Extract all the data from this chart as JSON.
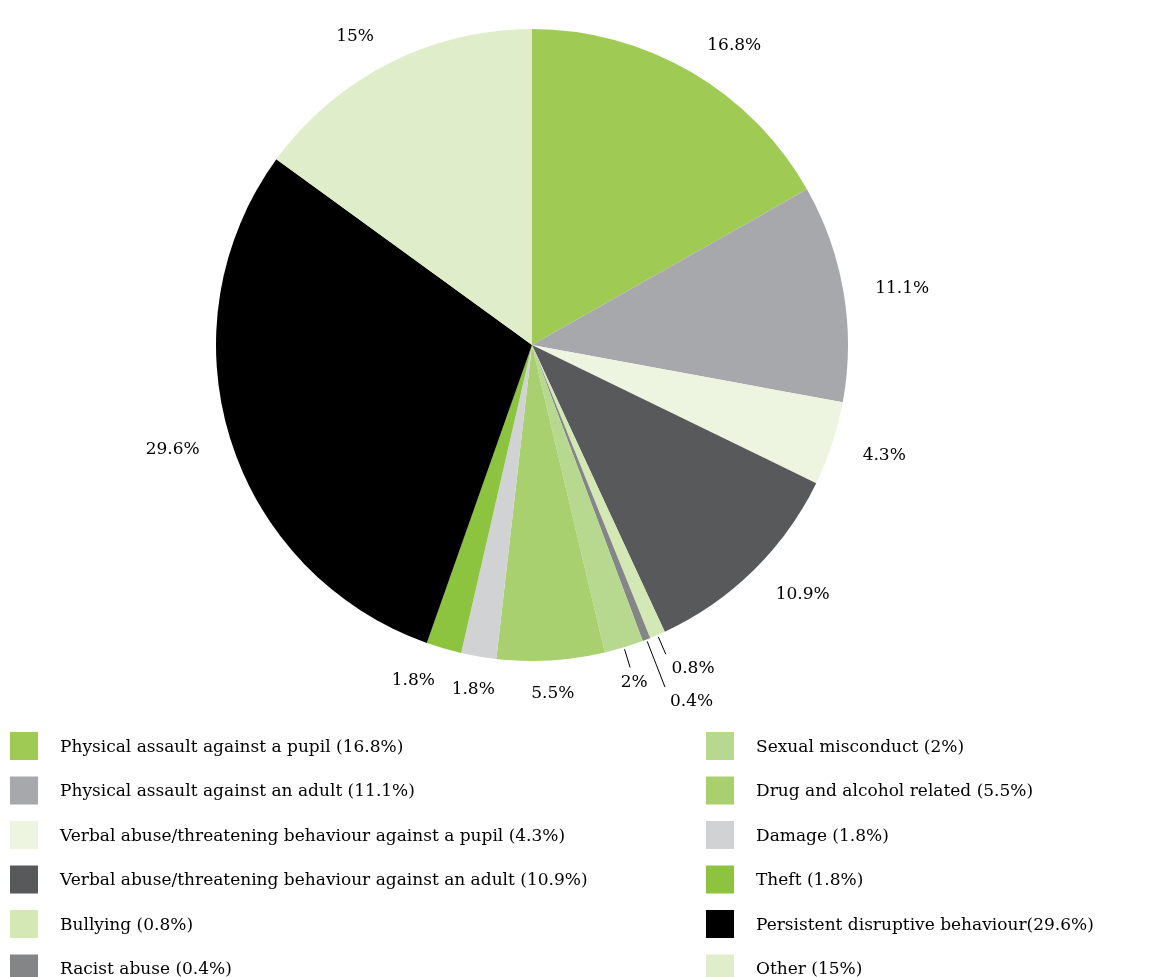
{
  "chart_data": {
    "type": "pie",
    "categories": [
      "Physical assault against a pupil (16.8%)",
      "Physical assault against an adult (11.1%)",
      "Verbal abuse/threatening behaviour against a pupil (4.3%)",
      "Verbal abuse/threatening behaviour against an adult (10.9%)",
      "Bullying (0.8%)",
      "Racist abuse (0.4%)",
      "Sexual misconduct (2%)",
      "Drug and alcohol related (5.5%)",
      "Damage (1.8%)",
      "Theft (1.8%)",
      "Persistent disruptive behaviour(29.6%)",
      "Other (15%)"
    ],
    "values": [
      16.8,
      11.1,
      4.3,
      10.9,
      0.8,
      0.4,
      2,
      5.5,
      1.8,
      1.8,
      29.6,
      15
    ],
    "value_labels": [
      "16.8%",
      "11.1%",
      "4.3%",
      "10.9%",
      "0.8%",
      "0.4%",
      "2%",
      "5.5%",
      "1.8%",
      "1.8%",
      "29.6%",
      "15%"
    ],
    "colors": [
      "#9fcb55",
      "#a7a8ab",
      "#edf5e1",
      "#58595b",
      "#d4e8b5",
      "#848587",
      "#b7d98f",
      "#a8d06e",
      "#d1d2d4",
      "#8cc43f",
      "#000000",
      "#e0edcb"
    ],
    "legend": "bottom"
  }
}
